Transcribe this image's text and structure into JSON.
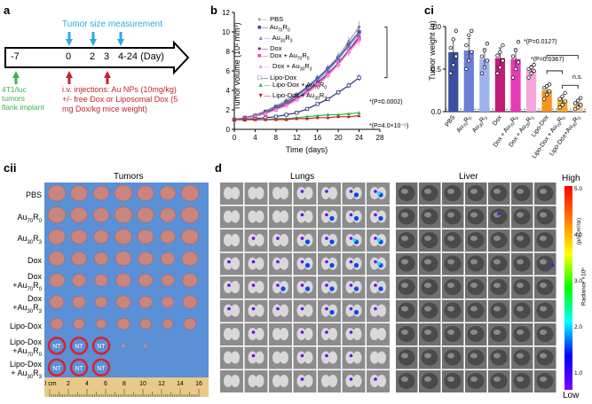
{
  "panel_a": {
    "label": "a",
    "day_start": "-7",
    "days": [
      "0",
      "2",
      "3",
      "4-24 (Day)"
    ],
    "measure_label": "Tumor size measurement",
    "implant_lines": [
      "4T1/luc",
      "tumors",
      "flank implant"
    ],
    "injection_lines": [
      "i.v. injections: Au NPs (10mg/kg)",
      "+/- free Dox or Liposomal Dox (5",
      "mg Dox/kg mice weight)"
    ],
    "colors": {
      "measure": "#29abe2",
      "injection": "#c1272d",
      "implant": "#39b54a"
    }
  },
  "panel_b": {
    "label": "b",
    "stat1": "*(P=0.0002)",
    "stat2": "*(P=4.0×10⁻⁵)",
    "legend_pbs": "PBS",
    "legend_au70": "Au",
    "legend_au70_sub": "70",
    "legend_au70_r": "R",
    "legend_au70_r_sub": "0",
    "legend_au30": "Au",
    "legend_au30_sub": "30",
    "legend_au30_r": "R",
    "legend_au30_r_sub": "3",
    "legend_dox": "Dox",
    "legend_dox_au70": "Dox + Au",
    "legend_dox_au30": "Dox + Au",
    "legend_lipo": "Lipo-Dox",
    "legend_lipo_au70": "Lipo-Dox + Au",
    "legend_lipo_au30": "Lipo-Dox + Au",
    "chart_data": {
      "type": "line",
      "title": "",
      "xlabel": "Time (days)",
      "ylabel": "Tumor volume (10² mm³)",
      "xlim": [
        0,
        28
      ],
      "ylim": [
        0,
        12
      ],
      "xticks": [
        0,
        4,
        8,
        12,
        16,
        20,
        24,
        28
      ],
      "yticks": [
        0,
        2,
        4,
        6,
        8,
        10,
        12
      ],
      "x": [
        0,
        2,
        4,
        6,
        8,
        10,
        12,
        14,
        16,
        18,
        20,
        22,
        24
      ],
      "series": [
        {
          "name": "PBS",
          "color": "#a0a0a0",
          "marker": "circle",
          "values": [
            1.0,
            1.2,
            1.5,
            1.9,
            2.4,
            3.0,
            3.6,
            4.4,
            5.3,
            6.3,
            7.5,
            9.0,
            10.5
          ]
        },
        {
          "name": "Au70R0",
          "color": "#3a4fa0",
          "marker": "square",
          "values": [
            1.0,
            1.2,
            1.4,
            1.8,
            2.3,
            2.8,
            3.5,
            4.3,
            5.2,
            6.2,
            7.3,
            8.7,
            10.0
          ]
        },
        {
          "name": "Au30R3",
          "color": "#7b8fd0",
          "marker": "triangle",
          "values": [
            1.0,
            1.1,
            1.4,
            1.8,
            2.2,
            2.7,
            3.4,
            4.1,
            5.0,
            6.0,
            7.2,
            8.5,
            9.8
          ]
        },
        {
          "name": "Dox",
          "color": "#7a1f6e",
          "marker": "circle",
          "values": [
            1.0,
            1.1,
            1.3,
            1.7,
            2.1,
            2.6,
            3.2,
            3.9,
            4.8,
            5.7,
            6.8,
            8.1,
            9.5
          ]
        },
        {
          "name": "Dox + Au70R0",
          "color": "#e24fb5",
          "marker": "square",
          "values": [
            1.0,
            1.1,
            1.3,
            1.6,
            2.0,
            2.5,
            3.1,
            3.8,
            4.6,
            5.6,
            6.7,
            8.0,
            9.3
          ]
        },
        {
          "name": "Dox + Au30R3",
          "color": "#f29bd2",
          "marker": "triangle",
          "values": [
            1.0,
            1.1,
            1.3,
            1.6,
            2.0,
            2.4,
            3.0,
            3.7,
            4.5,
            5.5,
            6.6,
            7.9,
            9.1
          ]
        },
        {
          "name": "Lipo-Dox",
          "color": "#2a2f7a",
          "marker": "square",
          "values": [
            1.0,
            1.0,
            1.1,
            1.2,
            1.3,
            1.5,
            1.7,
            2.1,
            2.6,
            3.1,
            3.8,
            4.5,
            5.3
          ]
        },
        {
          "name": "Lipo-Dox + Au70R0",
          "color": "#39b54a",
          "marker": "triangle",
          "values": [
            1.0,
            1.0,
            1.0,
            1.0,
            1.1,
            1.1,
            1.2,
            1.3,
            1.4,
            1.5,
            1.5,
            1.6,
            1.7
          ]
        },
        {
          "name": "Lipo-Dox + Au30R3",
          "color": "#c1272d",
          "marker": "triangle",
          "values": [
            1.0,
            1.0,
            1.0,
            1.0,
            1.0,
            1.0,
            1.1,
            1.1,
            1.2,
            1.2,
            1.3,
            1.3,
            1.4
          ]
        }
      ]
    }
  },
  "panel_ci": {
    "label": "ci",
    "stat1": "*(P=0.0127)",
    "stat2": "*(P=0.0367)",
    "stat3": "n.s.",
    "chart_data": {
      "type": "bar",
      "title": "",
      "xlabel": "",
      "ylabel": "Tumor weight (g)",
      "ylim": [
        0,
        1.0
      ],
      "yticks": [
        0.0,
        0.5,
        1.0
      ],
      "categories": [
        "PBS",
        "Au70R0",
        "Au30R3",
        "Dox",
        "Dox + Au70R0",
        "Dox + Au30R3",
        "Lipo-Dox",
        "Lipo-Dox + Au70R0",
        "Lipo-Dox+Au30R3"
      ],
      "values": [
        0.7,
        0.72,
        0.62,
        0.63,
        0.62,
        0.48,
        0.25,
        0.14,
        0.1
      ],
      "errors": [
        0.15,
        0.14,
        0.12,
        0.12,
        0.12,
        0.06,
        0.05,
        0.04,
        0.03
      ],
      "colors": [
        "#3a4fa0",
        "#6b7fd8",
        "#9fb2f0",
        "#c21c7a",
        "#e63bb8",
        "#f7a6dc",
        "#f7931e",
        "#f5a623",
        "#f9c98a"
      ],
      "points": [
        [
          0.45,
          0.55,
          0.65,
          0.75,
          0.85,
          0.95
        ],
        [
          0.5,
          0.6,
          0.7,
          0.78,
          0.9,
          0.95
        ],
        [
          0.45,
          0.52,
          0.6,
          0.65,
          0.72,
          0.8
        ],
        [
          0.45,
          0.52,
          0.6,
          0.66,
          0.7,
          0.78
        ],
        [
          0.4,
          0.5,
          0.58,
          0.65,
          0.72,
          0.82
        ],
        [
          0.4,
          0.45,
          0.48,
          0.5,
          0.52,
          0.55
        ],
        [
          0.15,
          0.2,
          0.24,
          0.28,
          0.3,
          0.32
        ],
        [
          0.05,
          0.08,
          0.12,
          0.15,
          0.18,
          0.22
        ],
        [
          0.03,
          0.05,
          0.08,
          0.1,
          0.13,
          0.16
        ]
      ],
      "xtick_labels": [
        {
          "main": "PBS",
          "sub": "",
          "r": "",
          "rsub": ""
        },
        {
          "main": "Au",
          "sub": "70",
          "r": "R",
          "rsub": "0"
        },
        {
          "main": "Au",
          "sub": "30",
          "r": "R",
          "rsub": "3"
        },
        {
          "main": "Dox",
          "sub": "",
          "r": "",
          "rsub": ""
        },
        {
          "main": "Dox + Au",
          "sub": "70",
          "r": "R",
          "rsub": "0"
        },
        {
          "main": "Dox + Au",
          "sub": "30",
          "r": "R",
          "rsub": "3"
        },
        {
          "main": "Lipo-Dox",
          "sub": "",
          "r": "",
          "rsub": ""
        },
        {
          "main": "Lipo-Dox + Au",
          "sub": "70",
          "r": "R",
          "rsub": "0"
        },
        {
          "main": "Lipo-Dox+Au",
          "sub": "30",
          "r": "R",
          "rsub": "3"
        }
      ]
    }
  },
  "panel_cii": {
    "label": "cii",
    "title": "Tumors",
    "rows": [
      {
        "main": "PBS",
        "sub": "",
        "r": "",
        "rsub": ""
      },
      {
        "main": "Au",
        "sub": "70",
        "r": "R",
        "rsub": "0"
      },
      {
        "main": "Au",
        "sub": "30",
        "r": "R",
        "rsub": "3"
      },
      {
        "main": "Dox",
        "sub": "",
        "r": "",
        "rsub": ""
      },
      {
        "main": "Dox",
        "line2": "+Au",
        "sub": "70",
        "r": "R",
        "rsub": "0"
      },
      {
        "main": "Dox",
        "line2": "+Au",
        "sub": "30",
        "r": "R",
        "rsub": "3"
      },
      {
        "main": "Lipo-Dox",
        "sub": "",
        "r": "",
        "rsub": ""
      },
      {
        "main": "Lipo-Dox",
        "line2": "+Au",
        "sub": "70",
        "r": "R",
        "rsub": "0"
      },
      {
        "main": "Lipo-Dox",
        "line2": "+ Au",
        "sub": "30",
        "r": "R",
        "rsub": "3"
      }
    ],
    "nt_label": "NT",
    "nt_counts": [
      0,
      0,
      0,
      0,
      0,
      0,
      0,
      3,
      3
    ],
    "ruler_ticks": [
      "0 cm",
      "2",
      "4",
      "6",
      "8",
      "10",
      "12",
      "14",
      "16"
    ],
    "colors": {
      "background": "#5b8fd6",
      "tumor": "#c9857e",
      "nt_ring": "#d8232a"
    }
  },
  "panel_d": {
    "label": "d",
    "lungs_title": "Lungs",
    "liver_title": "Liver",
    "colorbar_high": "High",
    "colorbar_low": "Low",
    "colorbar_ticks": [
      "5.0",
      "4.0",
      "3.0",
      "2.0",
      "1.0"
    ],
    "colorbar_unit": "Radiance ×10⁶",
    "colorbar_unit2": "(p/s/cm²/sr)"
  }
}
